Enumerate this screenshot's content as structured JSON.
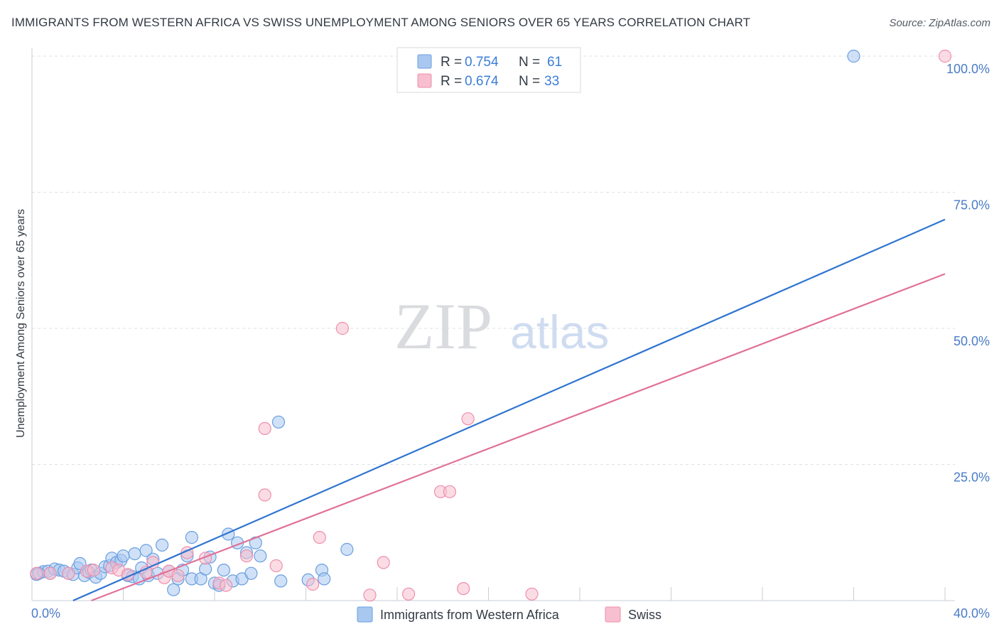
{
  "header": {
    "title": "IMMIGRANTS FROM WESTERN AFRICA VS SWISS UNEMPLOYMENT AMONG SENIORS OVER 65 YEARS CORRELATION CHART",
    "source": "Source: ZipAtlas.com"
  },
  "watermark": {
    "zip": "ZIP",
    "atlas": "atlas"
  },
  "colors": {
    "blue_fill": "#a9c8f0",
    "blue_stroke": "#6a9fe0",
    "blue_line": "#2f74d0",
    "pink_fill": "#f7bfd0",
    "pink_stroke": "#ee8fac",
    "pink_line": "#e07098",
    "grid": "#dde1e6",
    "tick_text": "#4a7cc7"
  },
  "legend": {
    "r_label": "R =",
    "n_label": "N =",
    "blue": {
      "r": "0.754",
      "n": "61"
    },
    "pink": {
      "r": "0.674",
      "n": "33"
    }
  },
  "chart_data": {
    "type": "scatter",
    "title": "IMMIGRANTS FROM WESTERN AFRICA VS SWISS UNEMPLOYMENT AMONG SENIORS OVER 65 YEARS CORRELATION CHART",
    "xlabel": "",
    "ylabel": "Unemployment Among Seniors over 65 years",
    "xlim": [
      0,
      40
    ],
    "ylim": [
      0,
      100
    ],
    "x_tick_labels": [
      "0.0%",
      "40.0%"
    ],
    "y_ticks": [
      {
        "value": 25,
        "label": "25.0%"
      },
      {
        "value": 50,
        "label": "50.0%"
      },
      {
        "value": 75,
        "label": "75.0%"
      },
      {
        "value": 100,
        "label": "100.0%"
      }
    ],
    "x_gridlines": [
      0,
      4,
      8,
      12,
      16,
      20,
      24,
      28,
      32,
      36,
      40
    ],
    "series": [
      {
        "name": "Immigrants from Western Africa",
        "color": "blue",
        "r": 0.754,
        "n": 61,
        "trend": {
          "x0": 1.8,
          "y0": 0,
          "x1": 40,
          "y1": 70
        },
        "points": [
          [
            0.2,
            4.8
          ],
          [
            0.5,
            5.3
          ],
          [
            0.7,
            5.4
          ],
          [
            0.8,
            5.0
          ],
          [
            1.0,
            5.8
          ],
          [
            1.2,
            5.6
          ],
          [
            1.4,
            5.4
          ],
          [
            1.6,
            5.0
          ],
          [
            1.8,
            4.8
          ],
          [
            2.0,
            6.0
          ],
          [
            2.1,
            6.8
          ],
          [
            2.3,
            4.6
          ],
          [
            2.5,
            5.2
          ],
          [
            2.6,
            5.6
          ],
          [
            2.8,
            4.3
          ],
          [
            3.0,
            5.0
          ],
          [
            3.2,
            6.2
          ],
          [
            3.4,
            6.4
          ],
          [
            3.5,
            7.8
          ],
          [
            3.7,
            7.0
          ],
          [
            3.9,
            7.4
          ],
          [
            4.0,
            8.2
          ],
          [
            4.2,
            4.6
          ],
          [
            4.4,
            4.4
          ],
          [
            4.5,
            8.6
          ],
          [
            4.7,
            4.0
          ],
          [
            4.8,
            6.0
          ],
          [
            5.0,
            9.2
          ],
          [
            5.1,
            4.6
          ],
          [
            5.3,
            7.6
          ],
          [
            5.5,
            5.0
          ],
          [
            5.7,
            10.2
          ],
          [
            6.0,
            5.4
          ],
          [
            6.2,
            2.0
          ],
          [
            6.4,
            4.0
          ],
          [
            6.6,
            5.6
          ],
          [
            6.8,
            8.2
          ],
          [
            7.0,
            11.6
          ],
          [
            7.0,
            4.0
          ],
          [
            7.4,
            4.0
          ],
          [
            7.6,
            5.8
          ],
          [
            7.8,
            8.0
          ],
          [
            8.0,
            3.2
          ],
          [
            8.2,
            2.8
          ],
          [
            8.4,
            5.6
          ],
          [
            8.6,
            12.2
          ],
          [
            8.8,
            3.6
          ],
          [
            9.0,
            10.6
          ],
          [
            9.2,
            4.0
          ],
          [
            9.4,
            8.8
          ],
          [
            9.6,
            5.0
          ],
          [
            9.8,
            10.6
          ],
          [
            10.0,
            8.2
          ],
          [
            10.8,
            32.8
          ],
          [
            10.9,
            3.6
          ],
          [
            12.1,
            3.8
          ],
          [
            12.7,
            5.6
          ],
          [
            12.8,
            4.0
          ],
          [
            13.8,
            9.4
          ],
          [
            36.0,
            100.0
          ],
          [
            0.3,
            5.0
          ]
        ]
      },
      {
        "name": "Swiss",
        "color": "pink",
        "r": 0.674,
        "n": 33,
        "trend": {
          "x0": 2.6,
          "y0": 0,
          "x1": 40,
          "y1": 60
        },
        "points": [
          [
            0.2,
            5.0
          ],
          [
            0.8,
            5.0
          ],
          [
            1.6,
            5.0
          ],
          [
            2.4,
            5.4
          ],
          [
            2.7,
            5.6
          ],
          [
            3.5,
            6.0
          ],
          [
            3.8,
            5.6
          ],
          [
            4.2,
            4.8
          ],
          [
            5.0,
            5.2
          ],
          [
            5.3,
            7.0
          ],
          [
            5.8,
            4.2
          ],
          [
            6.0,
            5.4
          ],
          [
            6.4,
            4.6
          ],
          [
            6.8,
            8.8
          ],
          [
            7.6,
            7.8
          ],
          [
            8.2,
            3.2
          ],
          [
            8.5,
            2.8
          ],
          [
            9.4,
            8.2
          ],
          [
            10.2,
            19.4
          ],
          [
            10.2,
            31.6
          ],
          [
            10.7,
            6.4
          ],
          [
            12.3,
            3.0
          ],
          [
            12.6,
            11.6
          ],
          [
            13.6,
            50.0
          ],
          [
            14.8,
            1.0
          ],
          [
            15.4,
            7.0
          ],
          [
            16.5,
            1.2
          ],
          [
            17.9,
            20.0
          ],
          [
            18.3,
            20.0
          ],
          [
            18.9,
            2.2
          ],
          [
            19.1,
            33.4
          ],
          [
            21.9,
            1.2
          ],
          [
            40.0,
            100.0
          ]
        ]
      }
    ]
  },
  "bottom_legend": {
    "blue_label": "Immigrants from Western Africa",
    "pink_label": "Swiss"
  }
}
